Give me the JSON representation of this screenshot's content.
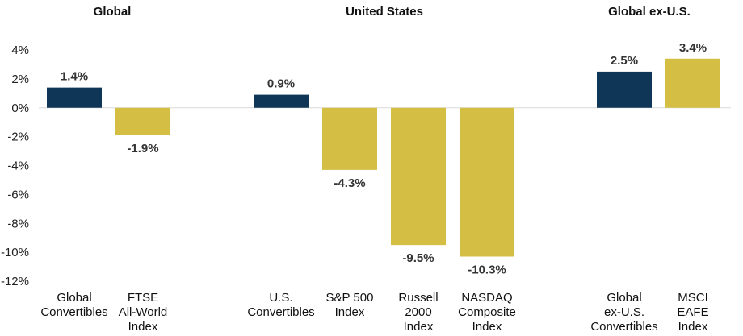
{
  "chart_data": {
    "type": "bar",
    "ylim": [
      -12,
      4
    ],
    "yticks": [
      "4%",
      "2%",
      "0%",
      "-2%",
      "-4%",
      "-6%",
      "-8%",
      "-10%",
      "-12%"
    ],
    "ytick_values": [
      4,
      2,
      0,
      -2,
      -4,
      -6,
      -8,
      -10,
      -12
    ],
    "grid": false,
    "colors": {
      "convertibles": "#0f3557",
      "index": "#d4bf44",
      "zero_line": "#d9d9d9"
    },
    "groups": [
      {
        "title": "Global",
        "bars": [
          {
            "category": [
              "Global",
              "Convertibles"
            ],
            "value": 1.4,
            "label": "1.4%",
            "kind": "convertibles"
          },
          {
            "category": [
              "FTSE",
              "All-World",
              "Index"
            ],
            "value": -1.9,
            "label": "-1.9%",
            "kind": "index"
          }
        ]
      },
      {
        "title": "United States",
        "bars": [
          {
            "category": [
              "U.S.",
              "Convertibles"
            ],
            "value": 0.9,
            "label": "0.9%",
            "kind": "convertibles"
          },
          {
            "category": [
              "S&P 500",
              "Index"
            ],
            "value": -4.3,
            "label": "-4.3%",
            "kind": "index"
          },
          {
            "category": [
              "Russell",
              "2000",
              "Index"
            ],
            "value": -9.5,
            "label": "-9.5%",
            "kind": "index"
          },
          {
            "category": [
              "NASDAQ",
              "Composite",
              "Index"
            ],
            "value": -10.3,
            "label": "-10.3%",
            "kind": "index"
          }
        ]
      },
      {
        "title": "Global ex-U.S.",
        "bars": [
          {
            "category": [
              "Global",
              "ex-U.S.",
              "Convertibles"
            ],
            "value": 2.5,
            "label": "2.5%",
            "kind": "convertibles"
          },
          {
            "category": [
              "MSCI",
              "EAFE",
              "Index"
            ],
            "value": 3.4,
            "label": "3.4%",
            "kind": "index"
          }
        ]
      }
    ]
  }
}
